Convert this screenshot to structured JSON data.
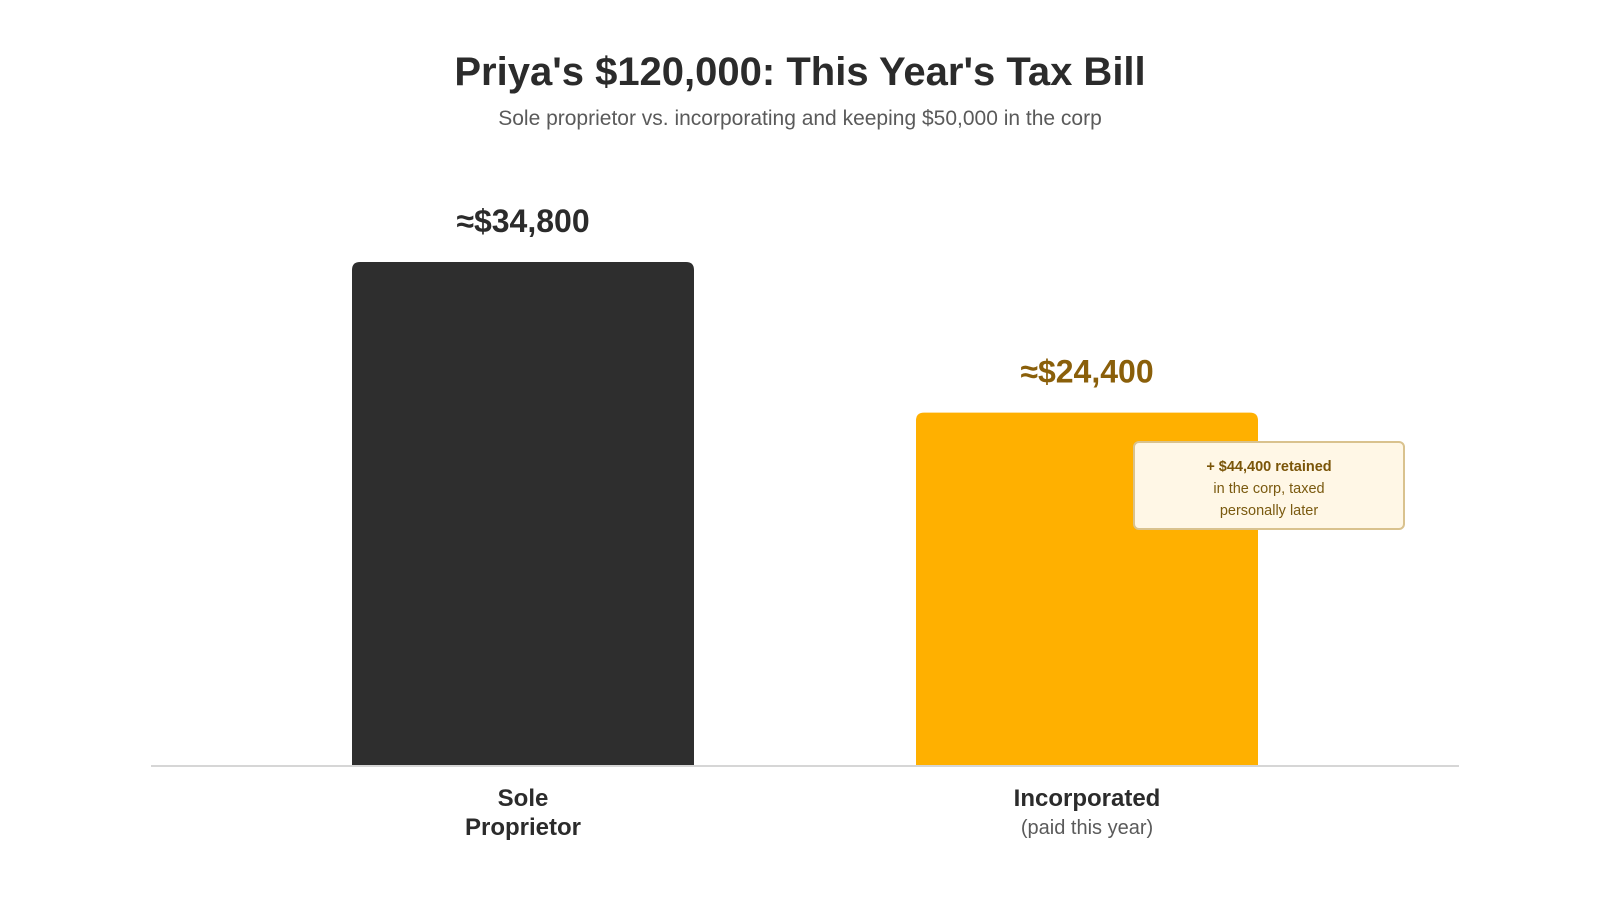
{
  "header": {
    "title": "Priya's $120,000: This Year's Tax Bill",
    "subtitle": "Sole proprietor vs. incorporating and keeping $50,000 in the corp"
  },
  "annotation": {
    "line1": "+ $44,400 retained",
    "line2": "in the corp, taxed",
    "line3": "personally later"
  },
  "colors": {
    "sole_proprietor": "#2e2e2e",
    "incorporated": "#ffb000",
    "incorporated_label": "#8a5f0a",
    "baseline": "#d6d6d6",
    "text_dark": "#2b2b2b",
    "text_muted": "#5a5a5a"
  },
  "chart_data": {
    "type": "bar",
    "title": "Priya's $120,000: This Year's Tax Bill",
    "subtitle": "Sole proprietor vs. incorporating and keeping $50,000 in the corp",
    "categories": [
      "Sole Proprietor",
      "Incorporated"
    ],
    "category_lines": [
      [
        "Sole",
        "Proprietor"
      ],
      [
        "Incorporated"
      ]
    ],
    "category_sublabels": [
      "",
      "(paid this year)"
    ],
    "values": [
      34800,
      24400
    ],
    "value_labels": [
      "≈$34,800",
      "≈$24,400"
    ],
    "ylim": [
      0,
      34800
    ],
    "grid": false,
    "xlabel": "",
    "ylabel": ""
  }
}
